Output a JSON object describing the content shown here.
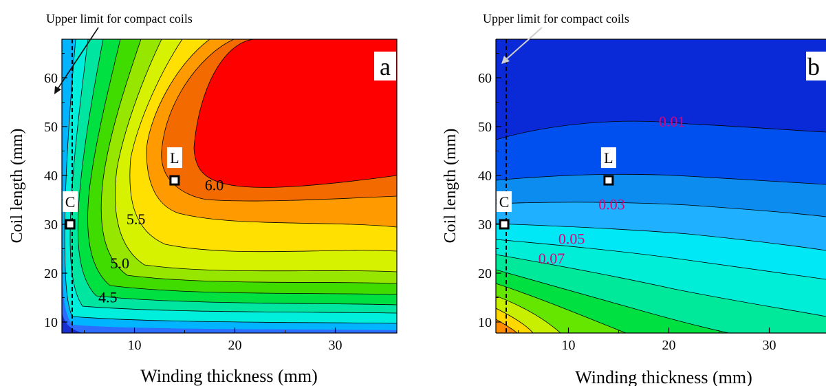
{
  "chart_data": [
    {
      "type": "contour",
      "panel_label": "a",
      "xlabel": "Winding thickness (mm)",
      "ylabel": "Coil length (mm)",
      "xlim": [
        3,
        36
      ],
      "ylim": [
        8,
        68
      ],
      "xticks": [
        "10",
        "20",
        "30"
      ],
      "yticks": [
        "10",
        "20",
        "30",
        "40",
        "50",
        "60"
      ],
      "annotation": "Upper limit for compact coils",
      "limit_line_x": 3.8,
      "contour_labels": [
        {
          "text": "4.5",
          "x": 6.4,
          "y": 14
        },
        {
          "text": "5.0",
          "x": 7.6,
          "y": 21
        },
        {
          "text": "5.5",
          "x": 9.2,
          "y": 30
        },
        {
          "text": "6.0",
          "x": 17,
          "y": 37
        }
      ],
      "points": [
        {
          "label": "C",
          "x": 3.6,
          "y": 30
        },
        {
          "label": "L",
          "x": 14,
          "y": 39
        }
      ],
      "grid": false
    },
    {
      "type": "contour",
      "panel_label": "b",
      "xlabel": "Winding thickness (mm)",
      "ylabel": "Coil length (mm)",
      "xlim": [
        3,
        36
      ],
      "ylim": [
        8,
        68
      ],
      "xticks": [
        "10",
        "20",
        "30"
      ],
      "yticks": [
        "10",
        "20",
        "30",
        "40",
        "50",
        "60"
      ],
      "annotation": "Upper limit for compact coils",
      "limit_line_x": 3.8,
      "contour_labels": [
        {
          "text": "0.01",
          "x": 19,
          "y": 50
        },
        {
          "text": "0.03",
          "x": 13,
          "y": 33
        },
        {
          "text": "0.05",
          "x": 9,
          "y": 26
        },
        {
          "text": "0.07",
          "x": 7,
          "y": 22
        }
      ],
      "points": [
        {
          "label": "C",
          "x": 3.6,
          "y": 30
        },
        {
          "label": "L",
          "x": 14,
          "y": 39
        }
      ],
      "grid": false
    }
  ]
}
